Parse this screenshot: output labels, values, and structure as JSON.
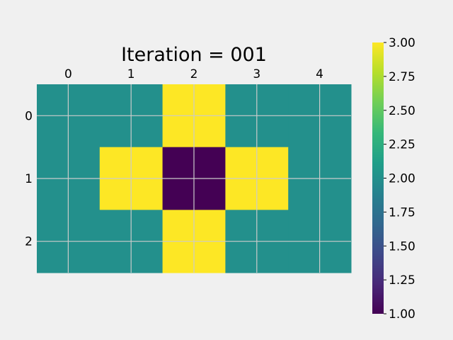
{
  "chart_data": {
    "type": "heatmap",
    "title": "Iteration = 001",
    "x_ticks": [
      "0",
      "1",
      "2",
      "3",
      "4"
    ],
    "y_ticks": [
      "0",
      "1",
      "2"
    ],
    "x_range": [
      -0.5,
      4.5
    ],
    "y_range": [
      -0.5,
      2.5
    ],
    "x_axis_position": "top",
    "grid": true,
    "values": [
      [
        2,
        2,
        3,
        2,
        2
      ],
      [
        2,
        3,
        1,
        3,
        2
      ],
      [
        2,
        2,
        3,
        2,
        2
      ]
    ],
    "colormap": "viridis",
    "colorbar": {
      "min": 1.0,
      "max": 3.0,
      "position": "right",
      "ticks": [
        "1.00",
        "1.25",
        "1.50",
        "1.75",
        "2.00",
        "2.25",
        "2.50",
        "2.75",
        "3.00"
      ]
    },
    "colors": {
      "value_1": "#440154",
      "value_2": "#21918c",
      "value_3": "#fde725",
      "background": "#f0f0f0",
      "grid": "#cbcbcb"
    }
  }
}
